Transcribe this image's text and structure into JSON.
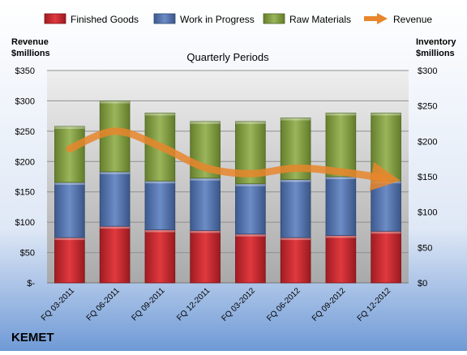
{
  "chart_data": {
    "type": "bar",
    "stacked": true,
    "title": "Quarterly Periods",
    "company": "KEMET",
    "y_left_label": [
      "Revenue",
      "$millions"
    ],
    "y_right_label": [
      "Inventory",
      "$millions"
    ],
    "y_left_ticks": [
      "$-",
      "$50",
      "$100",
      "$150",
      "$200",
      "$250",
      "$300",
      "$350"
    ],
    "y_right_ticks": [
      "$0",
      "$50",
      "$100",
      "$150",
      "$200",
      "$250",
      "$300"
    ],
    "ylim_left": [
      0,
      350
    ],
    "ylim_right": [
      0,
      300
    ],
    "categories": [
      "FQ 03-2011",
      "FQ 06-2011",
      "FQ 09-2011",
      "FQ 12-2011",
      "FQ 03-2012",
      "FQ 06-2012",
      "FQ 09-2012",
      "FQ 12-2012"
    ],
    "series": [
      {
        "name": "Finished Goods",
        "axis": "right",
        "color": "#c0282d",
        "values": [
          64,
          80,
          75,
          74,
          69,
          64,
          67,
          73
        ]
      },
      {
        "name": "Work in Progress",
        "axis": "right",
        "color": "#4f6fa8",
        "values": [
          78,
          77,
          69,
          74,
          71,
          82,
          83,
          71
        ]
      },
      {
        "name": "Raw Materials",
        "axis": "right",
        "color": "#7e9a3c",
        "values": [
          79,
          100,
          96,
          80,
          88,
          87,
          90,
          96
        ]
      },
      {
        "name": "Revenue",
        "axis": "left",
        "type": "line",
        "color": "#e8862c",
        "values": [
          221,
          250,
          225,
          190,
          180,
          189,
          183,
          172
        ]
      }
    ],
    "grid": true,
    "legend_position": "top"
  }
}
